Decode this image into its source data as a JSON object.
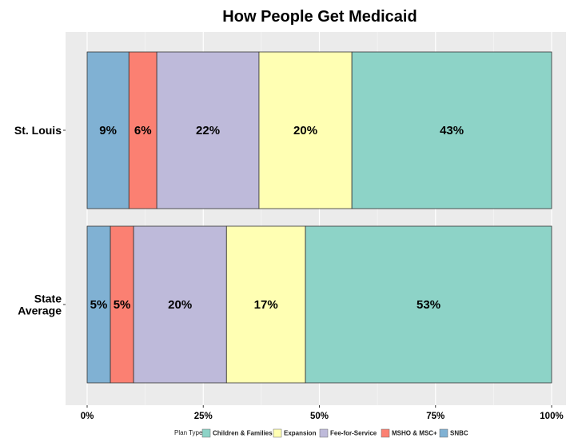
{
  "chart_data": {
    "type": "bar",
    "orientation": "horizontal",
    "stacked": true,
    "title": "How People Get Medicaid",
    "xlabel": "",
    "ylabel": "",
    "xlim": [
      0,
      100
    ],
    "x_ticks": [
      "0%",
      "25%",
      "50%",
      "75%",
      "100%"
    ],
    "grid": true,
    "legend_position": "bottom",
    "legend_title": "Plan Type:",
    "categories": [
      "St. Louis",
      "State\nAverage"
    ],
    "series": [
      {
        "name": "SNBC",
        "color": "#80B1D3",
        "values": [
          9,
          5
        ],
        "labels": [
          "9%",
          "5%"
        ]
      },
      {
        "name": "MSHO & MSC+",
        "color": "#FB8072",
        "values": [
          6,
          5
        ],
        "labels": [
          "6%",
          "5%"
        ]
      },
      {
        "name": "Fee-for-Service",
        "color": "#BEBADA",
        "values": [
          22,
          20
        ],
        "labels": [
          "22%",
          "20%"
        ]
      },
      {
        "name": "Expansion",
        "color": "#FFFFB3",
        "values": [
          20,
          17
        ],
        "labels": [
          "20%",
          "17%"
        ]
      },
      {
        "name": "Children & Families",
        "color": "#8DD3C7",
        "values": [
          43,
          53
        ],
        "labels": [
          "43%",
          "53%"
        ]
      }
    ],
    "legend_order": [
      "Children & Families",
      "Expansion",
      "Fee-for-Service",
      "MSHO & MSC+",
      "SNBC"
    ],
    "panel_background": "#EBEBEB"
  }
}
